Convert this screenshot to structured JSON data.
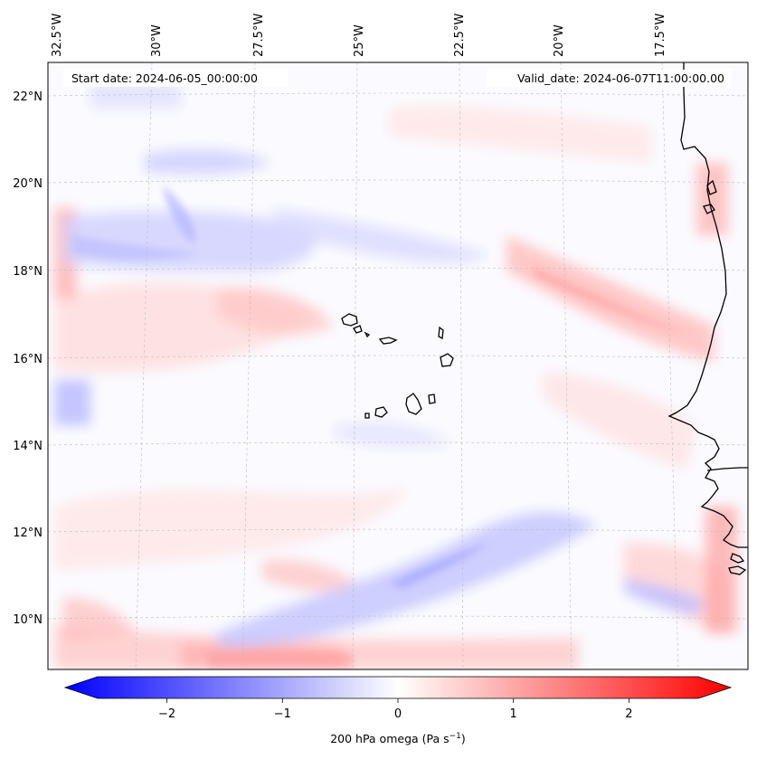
{
  "map": {
    "start_date_text": "Start date: 2024-06-05_00:00:00",
    "valid_date_text": "Valid_date: 2024-06-07T11:00:00.00",
    "longitude_labels": [
      "32.5°W",
      "30°W",
      "27.5°W",
      "25°W",
      "22.5°W",
      "20°W",
      "17.5°W"
    ],
    "latitude_labels": [
      "22°N",
      "20°N",
      "18°N",
      "16°N",
      "14°N",
      "12°N",
      "10°N"
    ],
    "region": "Cape Verde Islands and West African coast",
    "field": "200 hPa omega",
    "colormap": {
      "negative": "#0000ff",
      "zero": "#ffffff",
      "positive": "#ff0000"
    }
  },
  "colorbar": {
    "ticks": [
      -2,
      -1,
      0,
      1,
      2
    ],
    "tick_labels": [
      "−2",
      "−1",
      "0",
      "1",
      "2"
    ],
    "range": [
      -2.6,
      2.6
    ],
    "label_main": "200 hPa omega (Pa s",
    "label_exp": "−1",
    "label_end": ")"
  }
}
